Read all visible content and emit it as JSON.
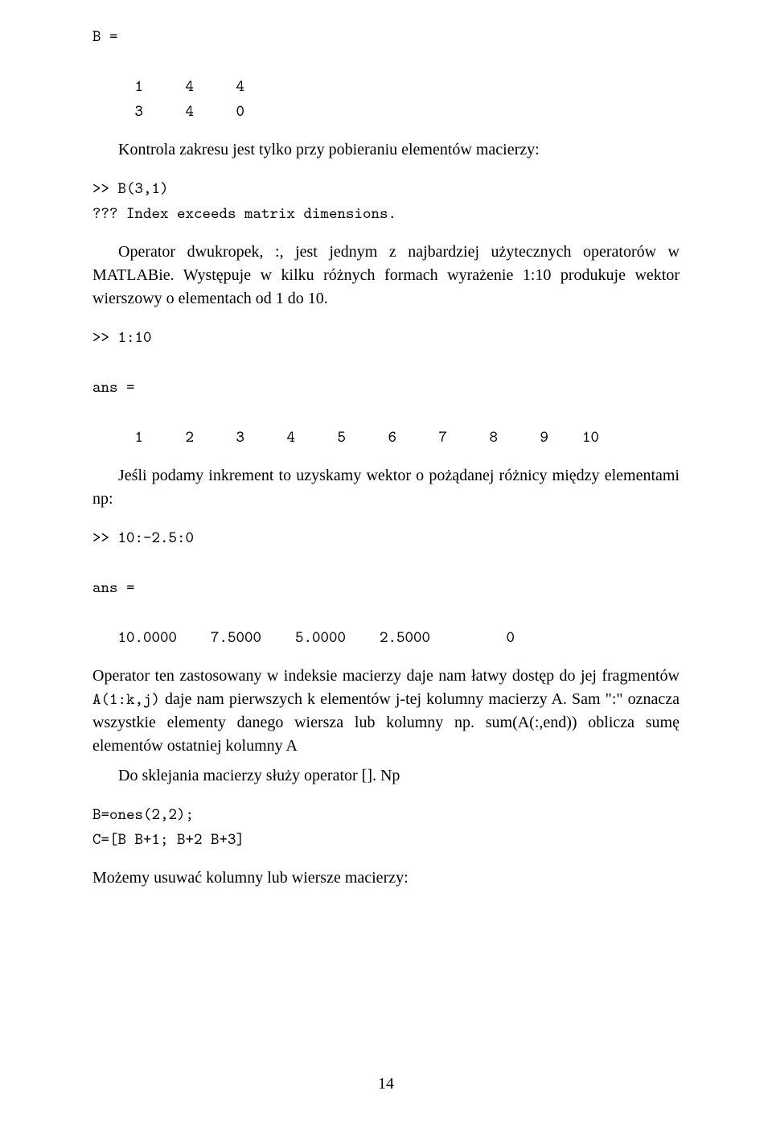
{
  "code_block_1": "B =\n\n     1     4     4\n     3     4     0",
  "para_1": "Kontrola zakresu jest tylko przy pobieraniu elementów macierzy:",
  "code_block_2": ">> B(3,1)\n??? Index exceeds matrix dimensions.",
  "para_2": "Operator dwukropek, :, jest jednym z najbardziej użytecznych operatorów w MATLABie. Występuje w kilku różnych formach wyrażenie 1:10 produkuje wektor wierszowy o elementach od 1 do 10.",
  "code_block_3": ">> 1:10\n\nans =\n\n     1     2     3     4     5     6     7     8     9    10",
  "para_3": "Jeśli podamy inkrement to uzyskamy wektor o pożądanej różnicy między elementami np:",
  "code_block_4": ">> 10:-2.5:0\n\nans =\n\n   10.0000    7.5000    5.0000    2.5000         0",
  "para_4_pre": "Operator ten zastosowany w indeksie macierzy daje nam łatwy dostęp do jej fragmentów ",
  "para_4_code": "A(1:k,j)",
  "para_4_post": " daje nam pierwszych k elementów j-tej kolumny macierzy A. Sam \":\" oznacza wszystkie elementy danego wiersza lub kolumny np. sum(A(:,end)) oblicza sumę elementów ostatniej kolumny A",
  "para_5": "Do sklejania macierzy służy operator []. Np",
  "code_block_5": "B=ones(2,2);\nC=[B B+1; B+2 B+3]",
  "para_6": "Możemy usuwać kolumny lub wiersze macierzy:",
  "page_number": "14"
}
